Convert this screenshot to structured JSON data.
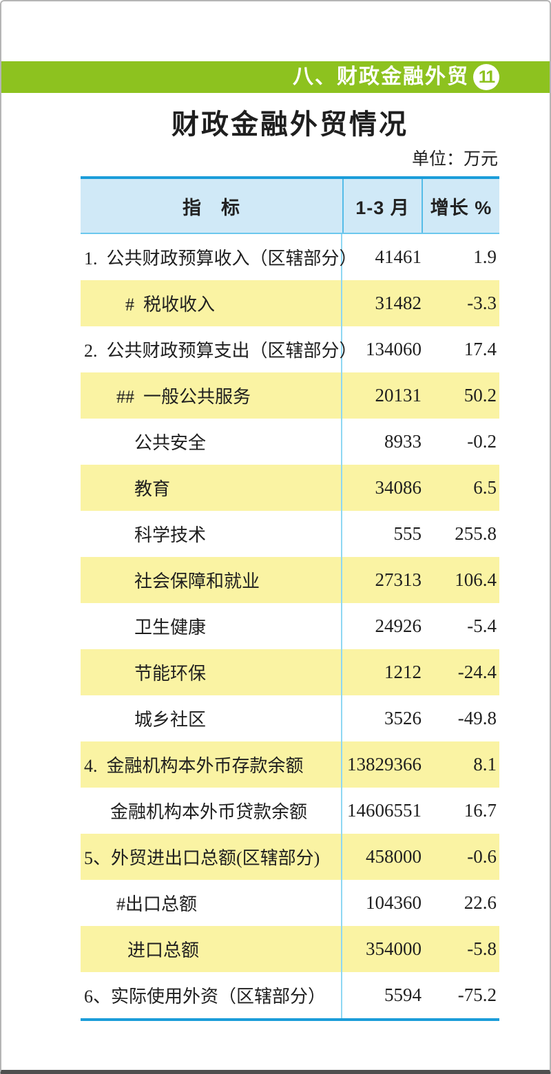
{
  "colors": {
    "green": "#8dc21f",
    "blue-strong": "#1b9dd9",
    "blue-header-div": "#55bce8",
    "blue-body-div": "#8ed7f3",
    "blue-header-bottom": "#6cc8ee",
    "header-bg": "#d0e9f7",
    "row-yellow": "#faf3a3",
    "text": "#1f1f1f"
  },
  "page": {
    "section_header": {
      "label": "八、财政金融外贸",
      "badge": "11"
    },
    "title": "财政金融外贸情况",
    "unit_note": "单位：万元"
  },
  "table": {
    "columns": [
      {
        "label": "指　标"
      },
      {
        "label": "1-3 月"
      },
      {
        "label": "增长 %"
      }
    ],
    "rows": [
      {
        "label": "1.  公共财政预算收入（区辖部分）",
        "value": "41461",
        "growth": "1.9",
        "highlight": false,
        "indent": 5
      },
      {
        "label": "#  税收收入",
        "value": "31482",
        "growth": "-3.3",
        "highlight": true,
        "indent": 65
      },
      {
        "label": "2.  公共财政预算支出（区辖部分）",
        "value": "134060",
        "growth": "17.4",
        "highlight": false,
        "indent": 5
      },
      {
        "label": "##  一般公共服务",
        "value": "20131",
        "growth": "50.2",
        "highlight": true,
        "indent": 52
      },
      {
        "label": "公共安全",
        "value": "8933",
        "growth": "-0.2",
        "highlight": false,
        "indent": 78
      },
      {
        "label": "教育",
        "value": "34086",
        "growth": "6.5",
        "highlight": true,
        "indent": 78
      },
      {
        "label": "科学技术",
        "value": "555",
        "growth": "255.8",
        "highlight": false,
        "indent": 78
      },
      {
        "label": "社会保障和就业",
        "value": "27313",
        "growth": "106.4",
        "highlight": true,
        "indent": 78
      },
      {
        "label": "卫生健康",
        "value": "24926",
        "growth": "-5.4",
        "highlight": false,
        "indent": 78
      },
      {
        "label": "节能环保",
        "value": "1212",
        "growth": "-24.4",
        "highlight": true,
        "indent": 78
      },
      {
        "label": "城乡社区",
        "value": "3526",
        "growth": "-49.8",
        "highlight": false,
        "indent": 78
      },
      {
        "label": "4.  金融机构本外币存款余额",
        "value": "13829366",
        "growth": "8.1",
        "highlight": true,
        "indent": 5
      },
      {
        "label": "金融机构本外币贷款余额",
        "value": "14606551",
        "growth": "16.7",
        "highlight": false,
        "indent": 43
      },
      {
        "label": "5、外贸进出口总额(区辖部分)",
        "value": "458000",
        "growth": "-0.6",
        "highlight": true,
        "indent": 5
      },
      {
        "label": "#出口总额",
        "value": "104360",
        "growth": "22.6",
        "highlight": false,
        "indent": 52
      },
      {
        "label": "进口总额",
        "value": "354000",
        "growth": "-5.8",
        "highlight": true,
        "indent": 68
      },
      {
        "label": "6、实际使用外资（区辖部分）",
        "value": "5594",
        "growth": "-75.2",
        "highlight": false,
        "indent": 5
      }
    ]
  }
}
